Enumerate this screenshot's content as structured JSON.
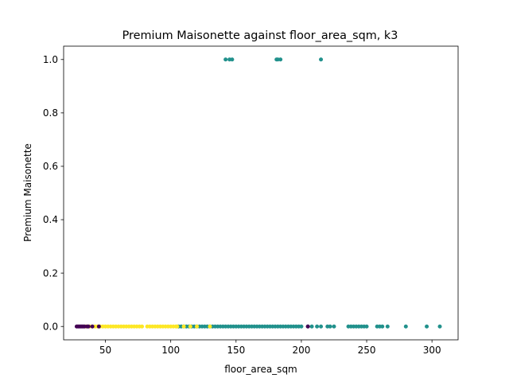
{
  "chart_data": {
    "type": "scatter",
    "title": "Premium Maisonette against floor_area_sqm, k3",
    "xlabel": "floor_area_sqm",
    "ylabel": "Premium Maisonette",
    "xlim": [
      18,
      320
    ],
    "ylim": [
      -0.05,
      1.05
    ],
    "xticks": [
      {
        "value": 50,
        "label": "50"
      },
      {
        "value": 100,
        "label": "100"
      },
      {
        "value": 150,
        "label": "150"
      },
      {
        "value": 200,
        "label": "200"
      },
      {
        "value": 250,
        "label": "250"
      },
      {
        "value": 300,
        "label": "300"
      }
    ],
    "yticks": [
      {
        "value": 0.0,
        "label": "0.0"
      },
      {
        "value": 0.2,
        "label": "0.2"
      },
      {
        "value": 0.4,
        "label": "0.4"
      },
      {
        "value": 0.6,
        "label": "0.6"
      },
      {
        "value": 0.8,
        "label": "0.8"
      },
      {
        "value": 1.0,
        "label": "1.0"
      }
    ],
    "grid": false,
    "legend": "none",
    "cluster_colors": [
      "#440154",
      "#21918c",
      "#fde725"
    ],
    "series": [
      {
        "color": "#21918c",
        "x": [
          106,
          108,
          110,
          112,
          114,
          116,
          118,
          120,
          122,
          124,
          126,
          128,
          130,
          132,
          134,
          136,
          138,
          140,
          142,
          144,
          146,
          148,
          150,
          152,
          154,
          156,
          158,
          160,
          162,
          164,
          166,
          168,
          170,
          172,
          174,
          176,
          178,
          180,
          182,
          184,
          186,
          188,
          190,
          192,
          194,
          196,
          198,
          200,
          205,
          208,
          212,
          215,
          220,
          222,
          225,
          236,
          238,
          240,
          242,
          244,
          246,
          248,
          250,
          258,
          260,
          262,
          266,
          280,
          296,
          306
        ],
        "y": [
          0,
          0,
          0,
          0,
          0,
          0,
          0,
          0,
          0,
          0,
          0,
          0,
          0,
          0,
          0,
          0,
          0,
          0,
          0,
          0,
          0,
          0,
          0,
          0,
          0,
          0,
          0,
          0,
          0,
          0,
          0,
          0,
          0,
          0,
          0,
          0,
          0,
          0,
          0,
          0,
          0,
          0,
          0,
          0,
          0,
          0,
          0,
          0,
          0,
          0,
          0,
          0,
          0,
          0,
          0,
          0,
          0,
          0,
          0,
          0,
          0,
          0,
          0,
          0,
          0,
          0,
          0,
          0,
          0,
          0
        ]
      },
      {
        "color": "#21918c",
        "x": [
          142,
          145,
          147,
          181,
          182,
          184,
          215
        ],
        "y": [
          1,
          1,
          1,
          1,
          1,
          1,
          1
        ]
      },
      {
        "color": "#fde725",
        "x": [
          35,
          38,
          42,
          44,
          46,
          48,
          50,
          52,
          54,
          56,
          58,
          60,
          62,
          64,
          66,
          68,
          70,
          72,
          74,
          76,
          78,
          82,
          84,
          86,
          88,
          90,
          92,
          94,
          96,
          98,
          100,
          102,
          104,
          105,
          110,
          115,
          120,
          130
        ],
        "y": [
          0,
          0,
          0,
          0,
          0,
          0,
          0,
          0,
          0,
          0,
          0,
          0,
          0,
          0,
          0,
          0,
          0,
          0,
          0,
          0,
          0,
          0,
          0,
          0,
          0,
          0,
          0,
          0,
          0,
          0,
          0,
          0,
          0,
          0,
          0,
          0,
          0,
          0
        ]
      },
      {
        "color": "#440154",
        "x": [
          28,
          29,
          30,
          31,
          32,
          33,
          34,
          36,
          37,
          40,
          45,
          205
        ],
        "y": [
          0,
          0,
          0,
          0,
          0,
          0,
          0,
          0,
          0,
          0,
          0,
          0
        ]
      }
    ]
  }
}
